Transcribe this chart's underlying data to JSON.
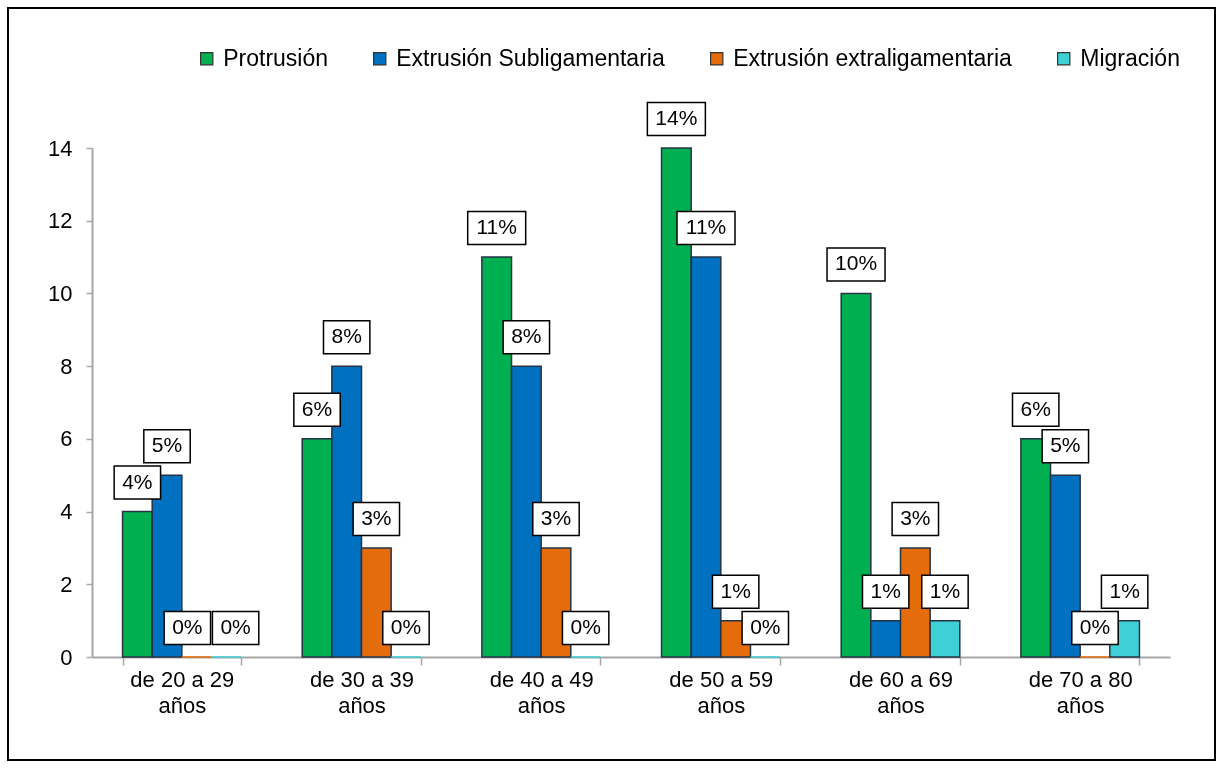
{
  "chart_data": {
    "type": "bar",
    "categories": [
      "de 20 a 29 años",
      "de 30 a 39 años",
      "de 40 a 49 años",
      "de 50 a 59 años",
      "de 60 a 69 años",
      "de 70 a 80 años"
    ],
    "ylim": [
      0,
      14
    ],
    "yticks": [
      0,
      2,
      4,
      6,
      8,
      10,
      12,
      14
    ],
    "grid": false,
    "legend": "top right",
    "series": [
      {
        "name": "Protrusión",
        "color": "#00b050",
        "values": [
          4,
          6,
          11,
          14,
          10,
          6
        ],
        "value_labels": [
          "4%",
          "6%",
          "11%",
          "14%",
          "10%",
          "6%"
        ]
      },
      {
        "name": "Extrusión Subligamentaria",
        "color": "#0070c0",
        "values": [
          5,
          8,
          8,
          11,
          1,
          5
        ],
        "value_labels": [
          "5%",
          "8%",
          "8%",
          "11%",
          "1%",
          "5%"
        ]
      },
      {
        "name": "Extrusión extraligamentaria",
        "color": "#e46c0a",
        "values": [
          0,
          3,
          3,
          1,
          3,
          0
        ],
        "value_labels": [
          "0%",
          "3%",
          "3%",
          "1%",
          "3%",
          "0%"
        ]
      },
      {
        "name": "Migración",
        "color": "#3fd0d6",
        "values": [
          0,
          0,
          0,
          0,
          1,
          1
        ],
        "value_labels": [
          "0%",
          "0%",
          "0%",
          "0%",
          "1%",
          "1%"
        ]
      }
    ]
  }
}
